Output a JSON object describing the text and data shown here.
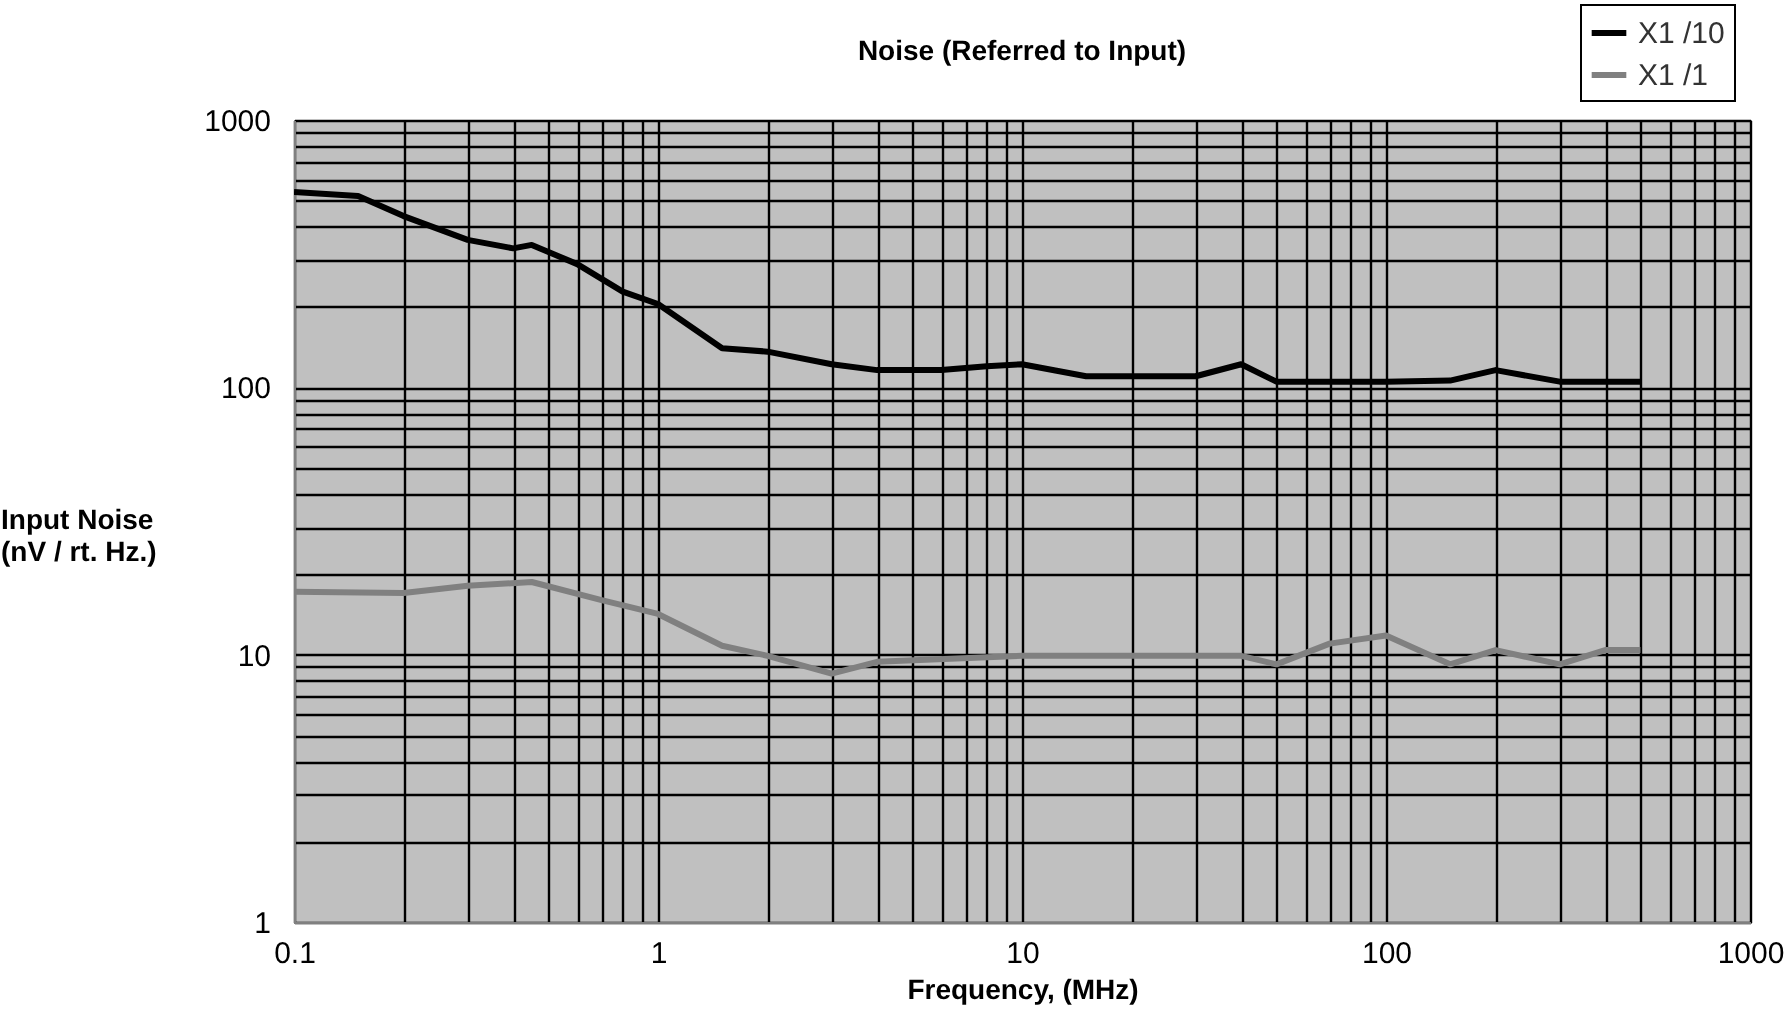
{
  "chart_data": {
    "type": "line",
    "title": "Noise  (Referred to Input)",
    "xlabel": "Frequency, (MHz)",
    "ylabel": "Input Noise\n(nV / rt. Hz.)",
    "log": "xy",
    "grid": true,
    "legend": "top right",
    "line_style": "solid",
    "marker": "none",
    "xlim": [
      0.1,
      1000
    ],
    "ylim": [
      1,
      1000
    ],
    "xticks": [
      0.1,
      {
        "value": 0.2,
        "label": null
      },
      {
        "value": 0.3,
        "label": null
      },
      {
        "value": 0.4,
        "label": null
      },
      {
        "value": 0.5,
        "label": null
      },
      {
        "value": 0.6,
        "label": null
      },
      {
        "value": 0.7,
        "label": null
      },
      {
        "value": 0.8,
        "label": null
      },
      {
        "value": 0.9,
        "label": null
      },
      1,
      {
        "value": 2,
        "label": null
      },
      {
        "value": 3,
        "label": null
      },
      {
        "value": 4,
        "label": null
      },
      {
        "value": 5,
        "label": null
      },
      {
        "value": 6,
        "label": null
      },
      {
        "value": 7,
        "label": null
      },
      {
        "value": 8,
        "label": null
      },
      {
        "value": 9,
        "label": null
      },
      10,
      {
        "value": 20,
        "label": null
      },
      {
        "value": 30,
        "label": null
      },
      {
        "value": 40,
        "label": null
      },
      {
        "value": 50,
        "label": null
      },
      {
        "value": 60,
        "label": null
      },
      {
        "value": 70,
        "label": null
      },
      {
        "value": 80,
        "label": null
      },
      {
        "value": 90,
        "label": null
      },
      100,
      {
        "value": 200,
        "label": null
      },
      {
        "value": 300,
        "label": null
      },
      {
        "value": 400,
        "label": null
      },
      {
        "value": 500,
        "label": null
      },
      {
        "value": 600,
        "label": null
      },
      {
        "value": 700,
        "label": null
      },
      {
        "value": 800,
        "label": null
      },
      {
        "value": 900,
        "label": null
      },
      1000
    ],
    "yticks": [
      1,
      {
        "value": 2,
        "label": null
      },
      {
        "value": 3,
        "label": null
      },
      {
        "value": 4,
        "label": null
      },
      {
        "value": 5,
        "label": null
      },
      {
        "value": 6,
        "label": null
      },
      {
        "value": 7,
        "label": null
      },
      {
        "value": 8,
        "label": null
      },
      {
        "value": 9,
        "label": null
      },
      10,
      {
        "value": 20,
        "label": null
      },
      {
        "value": 30,
        "label": null
      },
      {
        "value": 40,
        "label": null
      },
      {
        "value": 50,
        "label": null
      },
      {
        "value": 60,
        "label": null
      },
      {
        "value": 70,
        "label": null
      },
      {
        "value": 80,
        "label": null
      },
      {
        "value": 90,
        "label": null
      },
      100,
      {
        "value": 200,
        "label": null
      },
      {
        "value": 300,
        "label": null
      },
      {
        "value": 400,
        "label": null
      },
      {
        "value": 500,
        "label": null
      },
      {
        "value": 600,
        "label": null
      },
      {
        "value": 700,
        "label": null
      },
      {
        "value": 800,
        "label": null
      },
      {
        "value": 900,
        "label": null
      },
      1000
    ],
    "series": [
      {
        "name": "X1 /10",
        "color": "#000000",
        "x": [
          0.1,
          0.15,
          0.2,
          0.3,
          0.4,
          0.45,
          0.6,
          0.8,
          1,
          1.5,
          2,
          3,
          4,
          5,
          6,
          8,
          10,
          15,
          30,
          40,
          50,
          100,
          150,
          200,
          300,
          500
        ],
        "values": [
          538,
          520,
          437,
          356,
          331,
          341,
          289,
          228,
          205,
          140,
          136,
          122,
          116,
          116,
          116,
          120,
          122,
          110,
          110,
          122,
          105,
          105,
          106,
          116,
          105,
          105
        ]
      },
      {
        "name": "X1 /1",
        "color": "#808080",
        "x": [
          0.1,
          0.2,
          0.3,
          0.45,
          0.7,
          1,
          1.5,
          2,
          3,
          4,
          10,
          30,
          40,
          50,
          70,
          100,
          150,
          200,
          300,
          400,
          500
        ],
        "values": [
          17.2,
          17,
          18.1,
          18.7,
          16,
          14.2,
          10.8,
          9.9,
          8.5,
          9.4,
          9.9,
          9.9,
          9.9,
          9.2,
          11,
          11.8,
          9.2,
          10.4,
          9.2,
          10.4,
          10.4
        ]
      }
    ]
  }
}
